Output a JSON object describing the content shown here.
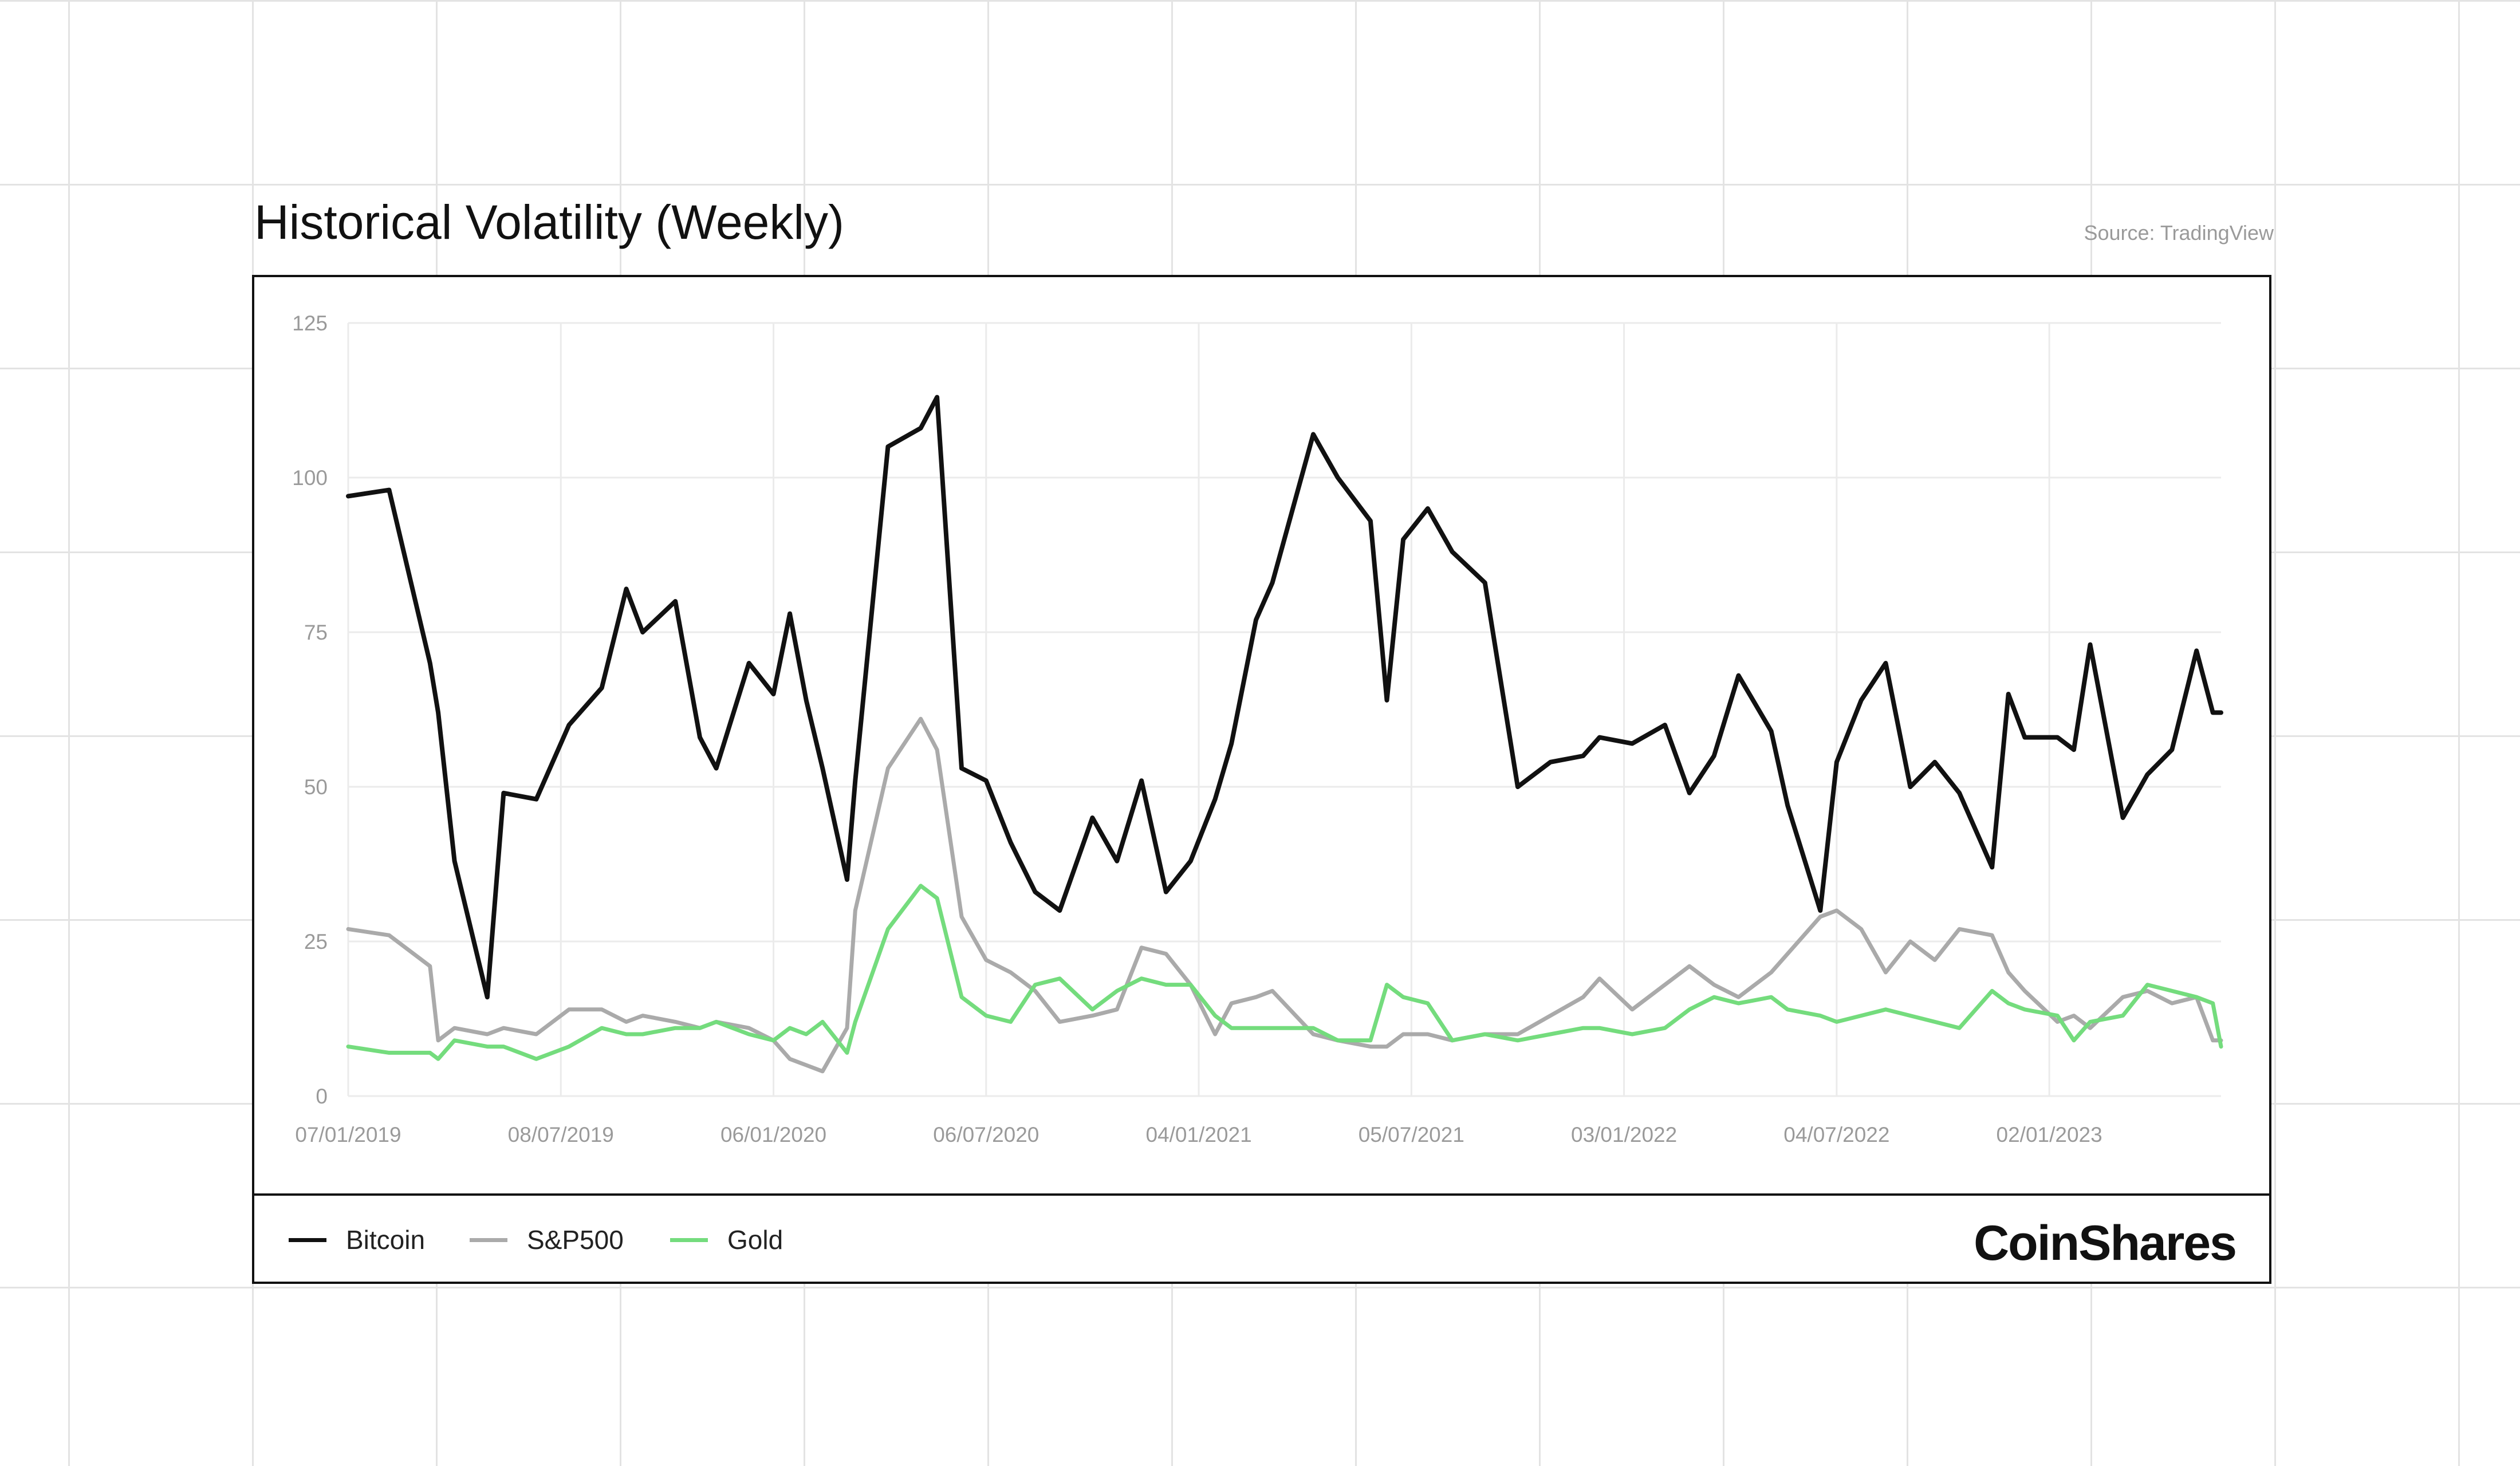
{
  "chart_data": {
    "type": "line",
    "title": "Historical Volatility (Weekly)",
    "source": "Source: TradingView",
    "xlabel": "",
    "ylabel": "",
    "ylim": [
      0,
      125
    ],
    "yticks": [
      0,
      25,
      50,
      75,
      100,
      125
    ],
    "xticks": [
      "07/01/2019",
      "08/07/2019",
      "06/01/2020",
      "06/07/2020",
      "04/01/2021",
      "05/07/2021",
      "03/01/2022",
      "04/07/2022",
      "02/01/2023"
    ],
    "x_range": [
      "2019-01-07",
      "2023-05-29"
    ],
    "grid": true,
    "legend_position": "bottom-left",
    "series": [
      {
        "name": "Bitcoin",
        "color": "#111111",
        "x": [
          "2019-01-07",
          "2019-02-11",
          "2019-03-18",
          "2019-03-25",
          "2019-04-08",
          "2019-05-06",
          "2019-05-20",
          "2019-06-17",
          "2019-07-15",
          "2019-08-12",
          "2019-09-02",
          "2019-09-16",
          "2019-10-14",
          "2019-11-04",
          "2019-11-18",
          "2019-12-16",
          "2020-01-06",
          "2020-01-20",
          "2020-02-03",
          "2020-02-17",
          "2020-03-09",
          "2020-03-16",
          "2020-04-13",
          "2020-05-11",
          "2020-05-25",
          "2020-06-15",
          "2020-07-06",
          "2020-07-27",
          "2020-08-17",
          "2020-09-07",
          "2020-10-05",
          "2020-10-26",
          "2020-11-16",
          "2020-12-07",
          "2020-12-28",
          "2021-01-18",
          "2021-02-01",
          "2021-02-22",
          "2021-03-08",
          "2021-04-12",
          "2021-05-03",
          "2021-05-31",
          "2021-06-14",
          "2021-06-28",
          "2021-07-19",
          "2021-08-09",
          "2021-09-06",
          "2021-10-04",
          "2021-11-01",
          "2021-11-29",
          "2021-12-13",
          "2022-01-10",
          "2022-02-07",
          "2022-02-28",
          "2022-03-21",
          "2022-04-11",
          "2022-05-09",
          "2022-05-23",
          "2022-06-20",
          "2022-07-04",
          "2022-07-25",
          "2022-08-15",
          "2022-09-05",
          "2022-09-26",
          "2022-10-17",
          "2022-11-14",
          "2022-11-28",
          "2022-12-12",
          "2023-01-09",
          "2023-01-23",
          "2023-02-06",
          "2023-03-06",
          "2023-03-27",
          "2023-04-17",
          "2023-05-08",
          "2023-05-22",
          "2023-05-29"
        ],
        "values": [
          97,
          98,
          70,
          62,
          38,
          16,
          49,
          48,
          60,
          66,
          82,
          75,
          80,
          58,
          53,
          70,
          65,
          78,
          64,
          53,
          35,
          51,
          105,
          108,
          113,
          53,
          51,
          41,
          33,
          30,
          45,
          38,
          51,
          33,
          38,
          48,
          57,
          77,
          83,
          107,
          100,
          93,
          64,
          90,
          95,
          88,
          83,
          50,
          54,
          55,
          58,
          57,
          60,
          49,
          55,
          68,
          59,
          47,
          30,
          54,
          64,
          70,
          50,
          54,
          49,
          37,
          65,
          58,
          58,
          56,
          73,
          45,
          52,
          56,
          72,
          62,
          62
        ]
      },
      {
        "name": "S&P500",
        "color": "#aaaaaa",
        "x": [
          "2019-01-07",
          "2019-02-11",
          "2019-03-18",
          "2019-03-25",
          "2019-04-08",
          "2019-05-06",
          "2019-05-20",
          "2019-06-17",
          "2019-07-15",
          "2019-08-12",
          "2019-09-02",
          "2019-09-16",
          "2019-10-14",
          "2019-11-04",
          "2019-11-18",
          "2019-12-16",
          "2020-01-06",
          "2020-01-20",
          "2020-02-03",
          "2020-02-17",
          "2020-03-09",
          "2020-03-16",
          "2020-04-13",
          "2020-05-11",
          "2020-05-25",
          "2020-06-15",
          "2020-07-06",
          "2020-07-27",
          "2020-08-17",
          "2020-09-07",
          "2020-10-05",
          "2020-10-26",
          "2020-11-16",
          "2020-12-07",
          "2020-12-28",
          "2021-01-18",
          "2021-02-01",
          "2021-02-22",
          "2021-03-08",
          "2021-04-12",
          "2021-05-03",
          "2021-05-31",
          "2021-06-14",
          "2021-06-28",
          "2021-07-19",
          "2021-08-09",
          "2021-09-06",
          "2021-10-04",
          "2021-11-01",
          "2021-11-29",
          "2021-12-13",
          "2022-01-10",
          "2022-02-07",
          "2022-02-28",
          "2022-03-21",
          "2022-04-11",
          "2022-05-09",
          "2022-05-23",
          "2022-06-20",
          "2022-07-04",
          "2022-07-25",
          "2022-08-15",
          "2022-09-05",
          "2022-09-26",
          "2022-10-17",
          "2022-11-14",
          "2022-11-28",
          "2022-12-12",
          "2023-01-09",
          "2023-01-23",
          "2023-02-06",
          "2023-03-06",
          "2023-03-27",
          "2023-04-17",
          "2023-05-08",
          "2023-05-22",
          "2023-05-29"
        ],
        "values": [
          27,
          26,
          21,
          9,
          11,
          10,
          11,
          10,
          14,
          14,
          12,
          13,
          12,
          11,
          12,
          11,
          9,
          6,
          5,
          4,
          11,
          30,
          53,
          61,
          56,
          29,
          22,
          20,
          17,
          12,
          13,
          14,
          24,
          23,
          18,
          10,
          15,
          16,
          17,
          10,
          9,
          8,
          8,
          10,
          10,
          9,
          10,
          10,
          13,
          16,
          19,
          14,
          18,
          21,
          18,
          16,
          20,
          23,
          29,
          30,
          27,
          20,
          25,
          22,
          27,
          26,
          20,
          17,
          12,
          13,
          11,
          16,
          17,
          15,
          16,
          9,
          9
        ]
      },
      {
        "name": "Gold",
        "color": "#74dc7d",
        "x": [
          "2019-01-07",
          "2019-02-11",
          "2019-03-18",
          "2019-03-25",
          "2019-04-08",
          "2019-05-06",
          "2019-05-20",
          "2019-06-17",
          "2019-07-15",
          "2019-08-12",
          "2019-09-02",
          "2019-09-16",
          "2019-10-14",
          "2019-11-04",
          "2019-11-18",
          "2019-12-16",
          "2020-01-06",
          "2020-01-20",
          "2020-02-03",
          "2020-02-17",
          "2020-03-09",
          "2020-03-16",
          "2020-04-13",
          "2020-05-11",
          "2020-05-25",
          "2020-06-15",
          "2020-07-06",
          "2020-07-27",
          "2020-08-17",
          "2020-09-07",
          "2020-10-05",
          "2020-10-26",
          "2020-11-16",
          "2020-12-07",
          "2020-12-28",
          "2021-01-18",
          "2021-02-01",
          "2021-02-22",
          "2021-03-08",
          "2021-04-12",
          "2021-05-03",
          "2021-05-31",
          "2021-06-14",
          "2021-06-28",
          "2021-07-19",
          "2021-08-09",
          "2021-09-06",
          "2021-10-04",
          "2021-11-01",
          "2021-11-29",
          "2021-12-13",
          "2022-01-10",
          "2022-02-07",
          "2022-02-28",
          "2022-03-21",
          "2022-04-11",
          "2022-05-09",
          "2022-05-23",
          "2022-06-20",
          "2022-07-04",
          "2022-07-25",
          "2022-08-15",
          "2022-09-05",
          "2022-09-26",
          "2022-10-17",
          "2022-11-14",
          "2022-11-28",
          "2022-12-12",
          "2023-01-09",
          "2023-01-23",
          "2023-02-06",
          "2023-03-06",
          "2023-03-27",
          "2023-04-17",
          "2023-05-08",
          "2023-05-22",
          "2023-05-29"
        ],
        "values": [
          8,
          7,
          7,
          6,
          9,
          8,
          8,
          6,
          8,
          11,
          10,
          10,
          11,
          11,
          12,
          10,
          9,
          11,
          10,
          12,
          7,
          12,
          27,
          34,
          32,
          16,
          13,
          12,
          18,
          19,
          14,
          17,
          19,
          18,
          18,
          13,
          11,
          11,
          11,
          11,
          9,
          9,
          18,
          16,
          15,
          9,
          10,
          9,
          10,
          11,
          11,
          10,
          11,
          14,
          16,
          15,
          16,
          14,
          13,
          12,
          13,
          14,
          13,
          12,
          11,
          17,
          15,
          14,
          13,
          9,
          12,
          13,
          18,
          17,
          16,
          15,
          8
        ]
      }
    ]
  },
  "legend": {
    "items": [
      "Bitcoin",
      "S&P500",
      "Gold"
    ]
  },
  "brand": {
    "name": "CoinShares"
  }
}
